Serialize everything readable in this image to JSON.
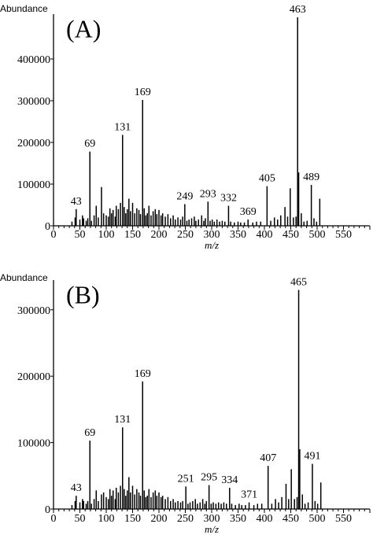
{
  "chart_data": [
    {
      "type": "bar",
      "panel_label": "(A)",
      "ylabel": "Abundance",
      "xlabel": "m/z",
      "xlim": [
        0,
        600
      ],
      "ylim": [
        0,
        500000
      ],
      "x_ticks": [
        0,
        50,
        100,
        150,
        200,
        250,
        300,
        350,
        400,
        450,
        500,
        550
      ],
      "y_ticks": [
        0,
        100000,
        200000,
        300000,
        400000
      ],
      "labeled_peaks": [
        {
          "mz": 43,
          "label": "43"
        },
        {
          "mz": 69,
          "label": "69"
        },
        {
          "mz": 131,
          "label": "131"
        },
        {
          "mz": 169,
          "label": "169"
        },
        {
          "mz": 249,
          "label": "249"
        },
        {
          "mz": 293,
          "label": "293"
        },
        {
          "mz": 332,
          "label": "332"
        },
        {
          "mz": 369,
          "label": "369"
        },
        {
          "mz": 405,
          "label": "405"
        },
        {
          "mz": 463,
          "label": "463"
        },
        {
          "mz": 489,
          "label": "489"
        }
      ],
      "peaks": [
        [
          35,
          10000
        ],
        [
          41,
          20000
        ],
        [
          43,
          40000
        ],
        [
          50,
          15000
        ],
        [
          55,
          25000
        ],
        [
          57,
          18000
        ],
        [
          62,
          12000
        ],
        [
          65,
          18000
        ],
        [
          69,
          178000
        ],
        [
          72,
          12000
        ],
        [
          77,
          25000
        ],
        [
          81,
          48000
        ],
        [
          85,
          20000
        ],
        [
          91,
          93000
        ],
        [
          95,
          30000
        ],
        [
          100,
          25000
        ],
        [
          104,
          22000
        ],
        [
          107,
          42000
        ],
        [
          110,
          30000
        ],
        [
          113,
          38000
        ],
        [
          117,
          22000
        ],
        [
          119,
          48000
        ],
        [
          123,
          40000
        ],
        [
          127,
          55000
        ],
        [
          131,
          218000
        ],
        [
          134,
          45000
        ],
        [
          137,
          30000
        ],
        [
          140,
          40000
        ],
        [
          143,
          65000
        ],
        [
          146,
          35000
        ],
        [
          150,
          55000
        ],
        [
          154,
          30000
        ],
        [
          158,
          42000
        ],
        [
          162,
          38000
        ],
        [
          165,
          28000
        ],
        [
          169,
          302000
        ],
        [
          172,
          42000
        ],
        [
          175,
          25000
        ],
        [
          178,
          30000
        ],
        [
          181,
          48000
        ],
        [
          185,
          25000
        ],
        [
          189,
          35000
        ],
        [
          193,
          40000
        ],
        [
          196,
          28000
        ],
        [
          200,
          38000
        ],
        [
          204,
          25000
        ],
        [
          207,
          30000
        ],
        [
          212,
          22000
        ],
        [
          217,
          28000
        ],
        [
          222,
          18000
        ],
        [
          227,
          25000
        ],
        [
          231,
          15000
        ],
        [
          236,
          20000
        ],
        [
          241,
          15000
        ],
        [
          245,
          22000
        ],
        [
          249,
          52000
        ],
        [
          253,
          12000
        ],
        [
          257,
          15000
        ],
        [
          262,
          18000
        ],
        [
          267,
          22000
        ],
        [
          270,
          12000
        ],
        [
          275,
          15000
        ],
        [
          281,
          25000
        ],
        [
          285,
          12000
        ],
        [
          288,
          18000
        ],
        [
          293,
          58000
        ],
        [
          297,
          12000
        ],
        [
          301,
          15000
        ],
        [
          305,
          10000
        ],
        [
          310,
          15000
        ],
        [
          315,
          10000
        ],
        [
          320,
          12000
        ],
        [
          325,
          10000
        ],
        [
          332,
          48000
        ],
        [
          336,
          10000
        ],
        [
          343,
          8000
        ],
        [
          350,
          10000
        ],
        [
          355,
          8000
        ],
        [
          362,
          8000
        ],
        [
          369,
          15000
        ],
        [
          378,
          8000
        ],
        [
          385,
          10000
        ],
        [
          393,
          10000
        ],
        [
          405,
          95000
        ],
        [
          412,
          12000
        ],
        [
          419,
          20000
        ],
        [
          425,
          15000
        ],
        [
          431,
          25000
        ],
        [
          439,
          45000
        ],
        [
          444,
          22000
        ],
        [
          449,
          90000
        ],
        [
          455,
          20000
        ],
        [
          460,
          22000
        ],
        [
          463,
          500000
        ],
        [
          465,
          128000
        ],
        [
          470,
          30000
        ],
        [
          475,
          10000
        ],
        [
          481,
          12000
        ],
        [
          489,
          98000
        ],
        [
          494,
          18000
        ],
        [
          499,
          10000
        ],
        [
          505,
          65000
        ]
      ]
    },
    {
      "type": "bar",
      "panel_label": "(B)",
      "ylabel": "Abundance",
      "xlabel": "m/z",
      "xlim": [
        0,
        600
      ],
      "ylim": [
        0,
        340000
      ],
      "x_ticks": [
        0,
        50,
        100,
        150,
        200,
        250,
        300,
        350,
        400,
        450,
        500,
        550
      ],
      "y_ticks": [
        0,
        100000,
        200000,
        300000
      ],
      "labeled_peaks": [
        {
          "mz": 43,
          "label": "43"
        },
        {
          "mz": 69,
          "label": "69"
        },
        {
          "mz": 131,
          "label": "131"
        },
        {
          "mz": 169,
          "label": "169"
        },
        {
          "mz": 251,
          "label": "251"
        },
        {
          "mz": 295,
          "label": "295"
        },
        {
          "mz": 334,
          "label": "334"
        },
        {
          "mz": 371,
          "label": "371"
        },
        {
          "mz": 407,
          "label": "407"
        },
        {
          "mz": 465,
          "label": "465"
        },
        {
          "mz": 491,
          "label": "491"
        }
      ],
      "peaks": [
        [
          35,
          6000
        ],
        [
          41,
          12000
        ],
        [
          43,
          20000
        ],
        [
          50,
          10000
        ],
        [
          55,
          15000
        ],
        [
          57,
          12000
        ],
        [
          62,
          8000
        ],
        [
          65,
          12000
        ],
        [
          69,
          103000
        ],
        [
          72,
          8000
        ],
        [
          77,
          15000
        ],
        [
          81,
          28000
        ],
        [
          85,
          12000
        ],
        [
          91,
          22000
        ],
        [
          95,
          25000
        ],
        [
          100,
          18000
        ],
        [
          104,
          15000
        ],
        [
          107,
          30000
        ],
        [
          110,
          20000
        ],
        [
          113,
          28000
        ],
        [
          117,
          15000
        ],
        [
          119,
          32000
        ],
        [
          123,
          25000
        ],
        [
          127,
          35000
        ],
        [
          131,
          123000
        ],
        [
          134,
          30000
        ],
        [
          137,
          20000
        ],
        [
          140,
          28000
        ],
        [
          143,
          48000
        ],
        [
          146,
          25000
        ],
        [
          150,
          35000
        ],
        [
          154,
          22000
        ],
        [
          158,
          30000
        ],
        [
          162,
          25000
        ],
        [
          165,
          20000
        ],
        [
          169,
          192000
        ],
        [
          172,
          28000
        ],
        [
          175,
          18000
        ],
        [
          178,
          20000
        ],
        [
          181,
          30000
        ],
        [
          185,
          18000
        ],
        [
          189,
          25000
        ],
        [
          193,
          28000
        ],
        [
          196,
          20000
        ],
        [
          200,
          25000
        ],
        [
          204,
          18000
        ],
        [
          207,
          20000
        ],
        [
          212,
          15000
        ],
        [
          217,
          18000
        ],
        [
          222,
          12000
        ],
        [
          227,
          15000
        ],
        [
          231,
          10000
        ],
        [
          236,
          12000
        ],
        [
          241,
          10000
        ],
        [
          245,
          12000
        ],
        [
          251,
          34000
        ],
        [
          255,
          8000
        ],
        [
          259,
          10000
        ],
        [
          264,
          12000
        ],
        [
          269,
          15000
        ],
        [
          273,
          8000
        ],
        [
          278,
          10000
        ],
        [
          283,
          15000
        ],
        [
          287,
          8000
        ],
        [
          290,
          12000
        ],
        [
          295,
          36000
        ],
        [
          299,
          8000
        ],
        [
          303,
          10000
        ],
        [
          308,
          8000
        ],
        [
          313,
          10000
        ],
        [
          318,
          8000
        ],
        [
          323,
          10000
        ],
        [
          328,
          8000
        ],
        [
          334,
          32000
        ],
        [
          338,
          8000
        ],
        [
          345,
          6000
        ],
        [
          352,
          8000
        ],
        [
          357,
          6000
        ],
        [
          364,
          6000
        ],
        [
          371,
          10000
        ],
        [
          380,
          6000
        ],
        [
          387,
          8000
        ],
        [
          395,
          8000
        ],
        [
          407,
          65000
        ],
        [
          414,
          8000
        ],
        [
          421,
          15000
        ],
        [
          427,
          10000
        ],
        [
          433,
          18000
        ],
        [
          441,
          38000
        ],
        [
          446,
          15000
        ],
        [
          451,
          60000
        ],
        [
          457,
          15000
        ],
        [
          462,
          18000
        ],
        [
          465,
          330000
        ],
        [
          467,
          90000
        ],
        [
          472,
          22000
        ],
        [
          477,
          8000
        ],
        [
          483,
          10000
        ],
        [
          491,
          68000
        ],
        [
          496,
          12000
        ],
        [
          501,
          8000
        ],
        [
          507,
          40000
        ]
      ]
    }
  ]
}
